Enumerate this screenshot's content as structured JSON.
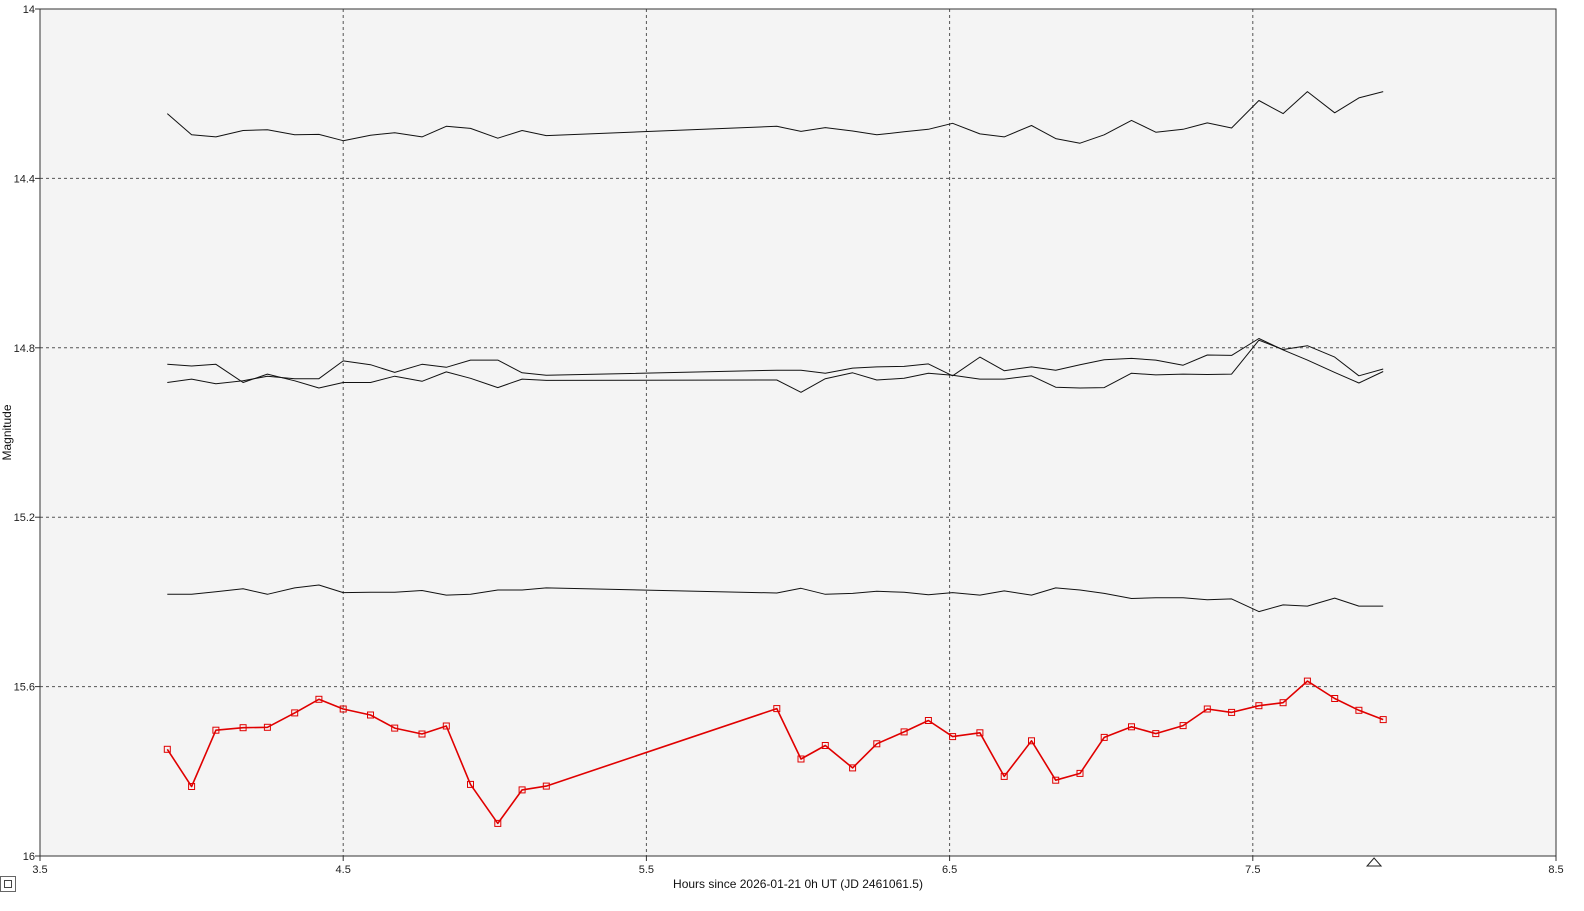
{
  "colors": {
    "plot_background": "#f4f4f4",
    "grid": "#555555",
    "comparison_star": "#111111",
    "target_star": "#e00000"
  },
  "chart_data": {
    "type": "line",
    "xlabel": "Hours since 2026-01-21 0h UT (JD 2461061.5)",
    "ylabel": "Magnitude",
    "xlim": [
      3.5,
      8.5
    ],
    "ylim": [
      16,
      14
    ],
    "y_inverted": true,
    "grid": true,
    "x_ticks": [
      "3.5",
      "4.5",
      "5.5",
      "6.5",
      "7.5",
      "8.5"
    ],
    "y_ticks": [
      "14",
      "14.4",
      "14.8",
      "15.2",
      "15.6",
      "16"
    ],
    "marker_hour": 7.9,
    "series": [
      {
        "style": "comparison",
        "x": [
          3.92,
          4.0,
          4.08,
          4.17,
          4.25,
          4.34,
          4.42,
          4.5,
          4.59,
          4.67,
          4.76,
          4.84,
          4.92,
          5.01,
          5.09,
          5.17,
          5.93,
          6.01,
          6.09,
          6.18,
          6.26,
          6.35,
          6.43,
          6.51,
          6.6,
          6.68,
          6.77,
          6.85,
          6.93,
          7.01,
          7.1,
          7.18,
          7.27,
          7.35,
          7.43,
          7.52,
          7.6,
          7.68,
          7.77,
          7.85,
          7.93
        ],
        "y": [
          14.247,
          14.297,
          14.302,
          14.287,
          14.285,
          14.297,
          14.296,
          14.311,
          14.298,
          14.292,
          14.302,
          14.277,
          14.282,
          14.305,
          14.287,
          14.299,
          14.277,
          14.289,
          14.28,
          14.288,
          14.297,
          14.29,
          14.284,
          14.27,
          14.295,
          14.302,
          14.275,
          14.306,
          14.317,
          14.297,
          14.263,
          14.291,
          14.284,
          14.269,
          14.281,
          14.216,
          14.247,
          14.195,
          14.245,
          14.21,
          14.195
        ]
      },
      {
        "style": "comparison",
        "x": [
          3.92,
          4.0,
          4.08,
          4.17,
          4.25,
          4.34,
          4.42,
          4.5,
          4.59,
          4.67,
          4.76,
          4.84,
          4.92,
          5.01,
          5.09,
          5.17,
          5.93,
          6.01,
          6.09,
          6.18,
          6.26,
          6.35,
          6.43,
          6.51,
          6.6,
          6.68,
          6.77,
          6.85,
          6.93,
          7.01,
          7.1,
          7.18,
          7.27,
          7.35,
          7.43,
          7.52,
          7.6,
          7.68,
          7.77,
          7.85,
          7.93
        ],
        "y": [
          14.839,
          14.843,
          14.839,
          14.882,
          14.862,
          14.878,
          14.895,
          14.882,
          14.882,
          14.867,
          14.879,
          14.857,
          14.872,
          14.894,
          14.874,
          14.877,
          14.876,
          14.905,
          14.873,
          14.859,
          14.876,
          14.872,
          14.86,
          14.865,
          14.874,
          14.874,
          14.866,
          14.893,
          14.895,
          14.894,
          14.86,
          14.864,
          14.862,
          14.863,
          14.862,
          14.782,
          14.804,
          14.795,
          14.822,
          14.866,
          14.85
        ]
      },
      {
        "style": "comparison",
        "x": [
          3.92,
          4.0,
          4.08,
          4.17,
          4.25,
          4.34,
          4.42,
          4.5,
          4.59,
          4.67,
          4.76,
          4.84,
          4.92,
          5.01,
          5.09,
          5.17,
          5.93,
          6.01,
          6.09,
          6.18,
          6.26,
          6.35,
          6.43,
          6.51,
          6.6,
          6.68,
          6.77,
          6.85,
          6.93,
          7.01,
          7.1,
          7.18,
          7.27,
          7.35,
          7.43,
          7.52,
          7.6,
          7.68,
          7.77,
          7.85,
          7.93
        ],
        "y": [
          14.882,
          14.874,
          14.885,
          14.878,
          14.867,
          14.873,
          14.873,
          14.831,
          14.84,
          14.858,
          14.839,
          14.846,
          14.829,
          14.829,
          14.859,
          14.865,
          14.853,
          14.853,
          14.86,
          14.848,
          14.845,
          14.844,
          14.838,
          14.866,
          14.822,
          14.854,
          14.845,
          14.853,
          14.84,
          14.828,
          14.825,
          14.829,
          14.841,
          14.817,
          14.818,
          14.778,
          14.805,
          14.829,
          14.858,
          14.883,
          14.856
        ]
      },
      {
        "style": "comparison",
        "x": [
          3.92,
          4.0,
          4.08,
          4.17,
          4.25,
          4.34,
          4.42,
          4.5,
          4.59,
          4.67,
          4.76,
          4.84,
          4.92,
          5.01,
          5.09,
          5.17,
          5.93,
          6.01,
          6.09,
          6.18,
          6.26,
          6.35,
          6.43,
          6.51,
          6.6,
          6.68,
          6.77,
          6.85,
          6.93,
          7.01,
          7.1,
          7.18,
          7.27,
          7.35,
          7.43,
          7.52,
          7.6,
          7.68,
          7.77,
          7.85,
          7.93
        ],
        "y": [
          15.382,
          15.382,
          15.376,
          15.369,
          15.382,
          15.367,
          15.36,
          15.378,
          15.377,
          15.377,
          15.373,
          15.384,
          15.382,
          15.372,
          15.372,
          15.367,
          15.379,
          15.368,
          15.382,
          15.38,
          15.375,
          15.377,
          15.383,
          15.378,
          15.384,
          15.374,
          15.384,
          15.367,
          15.372,
          15.38,
          15.392,
          15.39,
          15.39,
          15.395,
          15.393,
          15.423,
          15.407,
          15.41,
          15.391,
          15.41,
          15.41
        ]
      },
      {
        "style": "target",
        "markers": true,
        "x": [
          3.92,
          4.0,
          4.08,
          4.17,
          4.25,
          4.34,
          4.42,
          4.5,
          4.59,
          4.67,
          4.76,
          4.84,
          4.92,
          5.01,
          5.09,
          5.17,
          5.93,
          6.01,
          6.09,
          6.18,
          6.26,
          6.35,
          6.43,
          6.51,
          6.6,
          6.68,
          6.77,
          6.85,
          6.93,
          7.01,
          7.1,
          7.18,
          7.27,
          7.35,
          7.43,
          7.52,
          7.6,
          7.68,
          7.77,
          7.85,
          7.93
        ],
        "y": [
          15.748,
          15.836,
          15.703,
          15.697,
          15.696,
          15.662,
          15.63,
          15.653,
          15.667,
          15.698,
          15.712,
          15.693,
          15.831,
          15.923,
          15.844,
          15.835,
          15.652,
          15.771,
          15.739,
          15.792,
          15.735,
          15.707,
          15.68,
          15.718,
          15.709,
          15.812,
          15.728,
          15.821,
          15.805,
          15.72,
          15.695,
          15.711,
          15.692,
          15.653,
          15.661,
          15.645,
          15.638,
          15.587,
          15.628,
          15.656,
          15.678
        ]
      }
    ]
  }
}
